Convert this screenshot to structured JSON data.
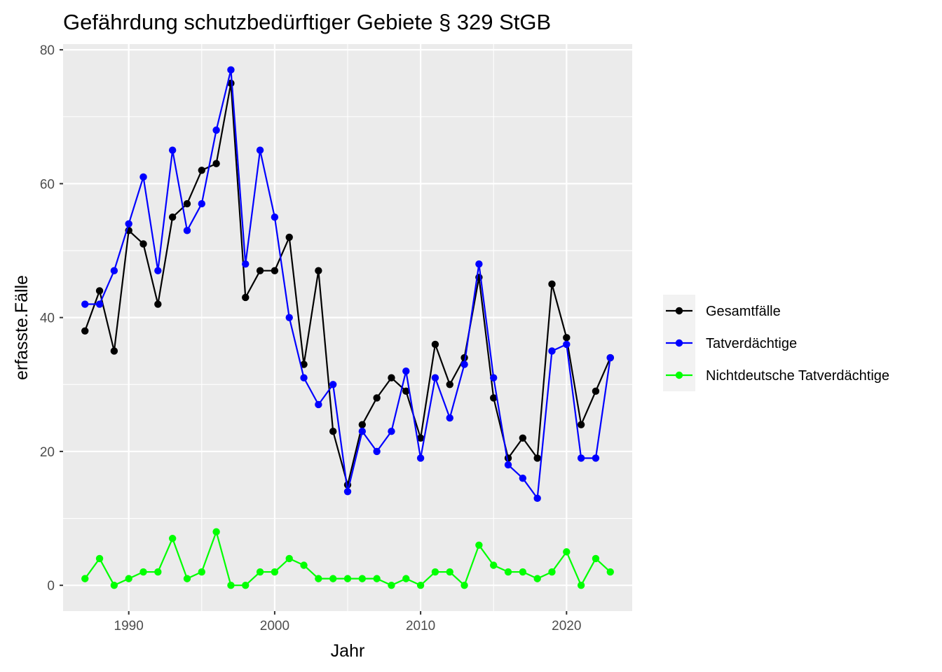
{
  "chart_data": {
    "type": "line",
    "title": "Gefährdung schutzbedürftiger Gebiete § 329 StGB",
    "xlabel": "Jahr",
    "ylabel": "erfasste.Fälle",
    "xlim": [
      1985.5,
      2024.5
    ],
    "ylim": [
      -3.85,
      80.85
    ],
    "x_ticks": [
      1990,
      2000,
      2010,
      2020
    ],
    "y_ticks": [
      0,
      20,
      40,
      60,
      80
    ],
    "grid": true,
    "legend_position": "right",
    "x": [
      1987,
      1988,
      1989,
      1990,
      1991,
      1992,
      1993,
      1994,
      1995,
      1996,
      1997,
      1998,
      1999,
      2000,
      2001,
      2002,
      2003,
      2004,
      2005,
      2006,
      2007,
      2008,
      2009,
      2010,
      2011,
      2012,
      2013,
      2014,
      2015,
      2016,
      2017,
      2018,
      2019,
      2020,
      2021,
      2022,
      2023
    ],
    "series": [
      {
        "name": "Gesamtfälle",
        "color": "#000000",
        "values": [
          38,
          44,
          35,
          53,
          51,
          42,
          55,
          57,
          62,
          63,
          75,
          43,
          47,
          47,
          52,
          33,
          47,
          23,
          15,
          24,
          28,
          31,
          29,
          22,
          36,
          30,
          34,
          46,
          28,
          19,
          22,
          19,
          45,
          37,
          24,
          29,
          34
        ]
      },
      {
        "name": "Tatverdächtige",
        "color": "#0000ff",
        "values": [
          42,
          42,
          47,
          54,
          61,
          47,
          65,
          53,
          57,
          68,
          77,
          48,
          65,
          55,
          40,
          31,
          27,
          30,
          14,
          23,
          20,
          23,
          32,
          19,
          31,
          25,
          33,
          48,
          31,
          18,
          16,
          13,
          35,
          36,
          19,
          19,
          34
        ]
      },
      {
        "name": "Nichtdeutsche Tatverdächtige",
        "color": "#00ff00",
        "values": [
          1,
          4,
          0,
          1,
          2,
          2,
          7,
          1,
          2,
          8,
          0,
          0,
          2,
          2,
          4,
          3,
          1,
          1,
          1,
          1,
          1,
          0,
          1,
          0,
          2,
          2,
          0,
          6,
          3,
          2,
          2,
          1,
          2,
          5,
          0,
          4,
          2
        ]
      }
    ]
  },
  "colors": {
    "panel_background": "#ebebeb",
    "grid": "#ffffff",
    "tick_text": "#4d4d4d",
    "legend_key_background": "#f2f2f2"
  }
}
